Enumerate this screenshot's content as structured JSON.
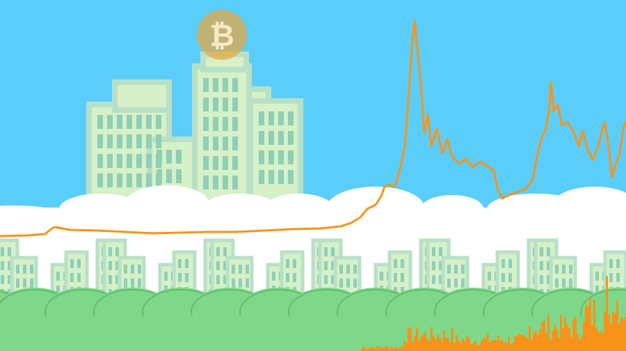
{
  "scene": {
    "coin_icon": "bitcoin-coin-icon",
    "coin_symbol": "₿",
    "colors": {
      "sky": "#5bcdfa",
      "building_fill": "#d6f0c8",
      "building_outline": "#b8e0c6",
      "window": "#8ecfb6",
      "cloud": "#ffffff",
      "bush": "#7fd88a",
      "bush_dark": "#5cbf6e",
      "price_line": "#f7931a",
      "volume": "#f7931a",
      "coin": "#e8a73d"
    }
  }
}
